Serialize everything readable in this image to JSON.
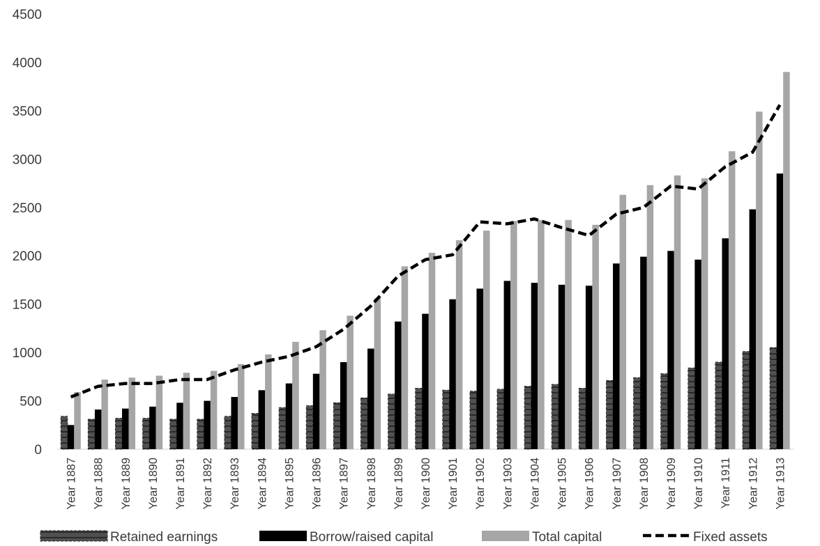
{
  "chart_data": {
    "type": "bar",
    "categories": [
      "Year 1887",
      "Year 1888",
      "Year 1889",
      "Year 1890",
      "Year 1891",
      "Year 1892",
      "Year 1893",
      "Year 1894",
      "Year 1895",
      "Year 1896",
      "Year 1897",
      "Year 1898",
      "Year 1899",
      "Year 1900",
      "Year 1901",
      "Year 1902",
      "Year 1903",
      "Year 1904",
      "Year 1905",
      "Year 1906",
      "Year 1907",
      "Year 1908",
      "Year 1909",
      "Year 1910",
      "Year 1911",
      "Year 1912",
      "Year 1913"
    ],
    "series": [
      {
        "name": "Retained earnings",
        "type": "bar",
        "color": "#404040",
        "values": [
          340,
          310,
          320,
          320,
          310,
          310,
          340,
          370,
          430,
          450,
          480,
          530,
          570,
          630,
          610,
          600,
          620,
          650,
          670,
          630,
          710,
          740,
          780,
          840,
          900,
          1010,
          1050
        ]
      },
      {
        "name": "Borrow/raised capital",
        "type": "bar",
        "color": "#000000",
        "values": [
          250,
          410,
          420,
          440,
          480,
          500,
          540,
          610,
          680,
          780,
          900,
          1040,
          1320,
          1400,
          1550,
          1660,
          1740,
          1720,
          1700,
          1690,
          1920,
          1990,
          2050,
          1960,
          2180,
          2480,
          2850
        ]
      },
      {
        "name": "Total capital",
        "type": "bar",
        "color": "#a6a6a6",
        "values": [
          590,
          720,
          740,
          760,
          790,
          810,
          880,
          980,
          1110,
          1230,
          1380,
          1560,
          1890,
          2030,
          2160,
          2260,
          2360,
          2370,
          2370,
          2320,
          2630,
          2730,
          2830,
          2800,
          3080,
          3490,
          3900
        ]
      },
      {
        "name": "Fixed assets",
        "type": "line",
        "color": "#000000",
        "values": [
          540,
          650,
          680,
          680,
          720,
          720,
          820,
          900,
          960,
          1060,
          1240,
          1480,
          1790,
          1960,
          2010,
          2350,
          2330,
          2380,
          2290,
          2210,
          2430,
          2500,
          2720,
          2690,
          2920,
          3070,
          3560
        ]
      }
    ],
    "yticks": [
      "0",
      "500",
      "1000",
      "1500",
      "2000",
      "2500",
      "3000",
      "3500",
      "4000",
      "4500"
    ],
    "ylim": [
      0,
      4500
    ],
    "title": "",
    "xlabel": "",
    "ylabel": "",
    "legend_position": "bottom",
    "grid": false
  }
}
